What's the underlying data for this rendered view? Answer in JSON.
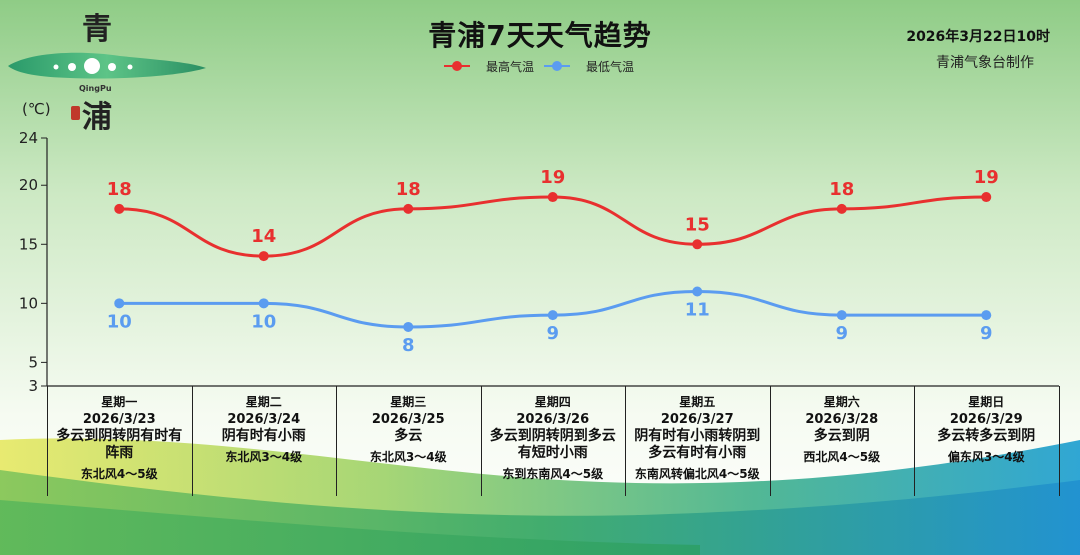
{
  "header": {
    "title": "青浦7天天气趋势",
    "issue_time": "2026年3月22日10时",
    "issuer": "青浦气象台制作",
    "unit": "(℃)"
  },
  "logo": {
    "char_top": "青",
    "char_bottom": "浦",
    "english": "QingPu"
  },
  "chart_data": {
    "type": "line",
    "ylim": [
      3,
      24
    ],
    "yticks": [
      3,
      5,
      10,
      15,
      20,
      24
    ],
    "ylabel": "(℃)",
    "categories": [
      "星期一",
      "星期二",
      "星期三",
      "星期四",
      "星期五",
      "星期六",
      "星期日"
    ],
    "series": [
      {
        "name": "最高气温",
        "color": "#e8302f",
        "values": [
          18,
          14,
          18,
          19,
          15,
          18,
          19
        ]
      },
      {
        "name": "最低气温",
        "color": "#5b9cf0",
        "values": [
          10,
          10,
          8,
          9,
          11,
          9,
          9
        ]
      }
    ],
    "legend_position": "top-center"
  },
  "days": [
    {
      "weekday": "星期一",
      "date": "2026/3/23",
      "weather": "多云到阴转阴有时有阵雨",
      "wind": "东北风4～5级"
    },
    {
      "weekday": "星期二",
      "date": "2026/3/24",
      "weather": "阴有时有小雨",
      "wind": "东北风3～4级"
    },
    {
      "weekday": "星期三",
      "date": "2026/3/25",
      "weather": "多云",
      "wind": "东北风3～4级"
    },
    {
      "weekday": "星期四",
      "date": "2026/3/26",
      "weather": "多云到阴转阴到多云有短时小雨",
      "wind": "东到东南风4～5级"
    },
    {
      "weekday": "星期五",
      "date": "2026/3/27",
      "weather": "阴有时有小雨转阴到多云有时有小雨",
      "wind": "东南风转偏北风4～5级"
    },
    {
      "weekday": "星期六",
      "date": "2026/3/28",
      "weather": "多云到阴",
      "wind": "西北风4～5级"
    },
    {
      "weekday": "星期日",
      "date": "2026/3/29",
      "weather": "多云转多云到阴",
      "wind": "偏东风3～4级"
    }
  ]
}
